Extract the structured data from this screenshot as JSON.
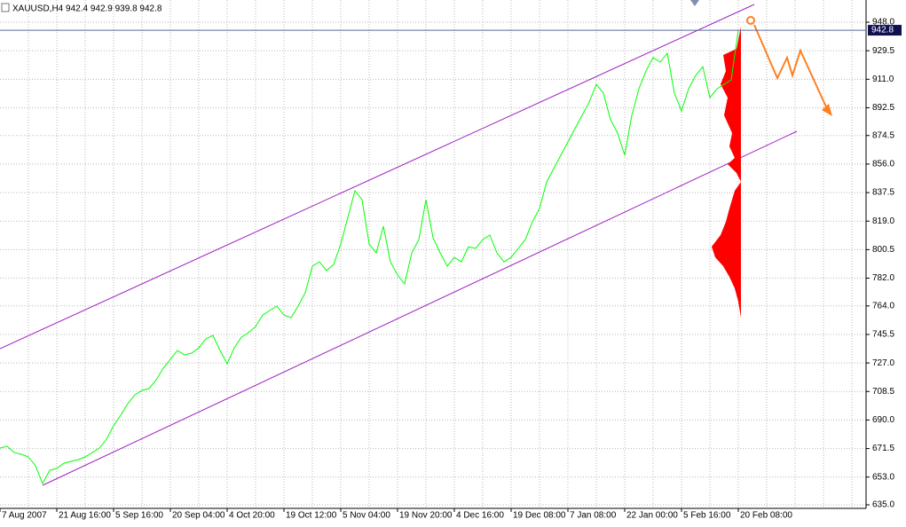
{
  "chart_data": {
    "type": "line",
    "title": "XAUUSD,H4 942.4 942.9 939.8 942.8",
    "categories": [
      "7 Aug 2007",
      null,
      null,
      null,
      null,
      null,
      null,
      null,
      "21 Aug 16:00",
      null,
      null,
      null,
      null,
      null,
      null,
      null,
      "5 Sep 16:00",
      null,
      null,
      null,
      null,
      null,
      null,
      null,
      "20 Sep 04:00",
      null,
      null,
      null,
      null,
      null,
      null,
      null,
      "4 Oct 20:00",
      null,
      null,
      null,
      null,
      null,
      null,
      null,
      "19 Oct 12:00",
      null,
      null,
      null,
      null,
      null,
      null,
      null,
      "5 Nov 04:00",
      null,
      null,
      null,
      null,
      null,
      null,
      null,
      "19 Nov 20:00",
      null,
      null,
      null,
      null,
      null,
      null,
      null,
      "4 Dec 16:00",
      null,
      null,
      null,
      null,
      null,
      null,
      null,
      "19 Dec 08:00",
      null,
      null,
      null,
      null,
      null,
      null,
      null,
      "7 Jan 08:00",
      null,
      null,
      null,
      null,
      null,
      null,
      null,
      "22 Jan 00:00",
      null,
      null,
      null,
      null,
      null,
      null,
      null,
      "5 Feb 16:00",
      null,
      null,
      null,
      null,
      null,
      null,
      null,
      "20 Feb 08:00"
    ],
    "values": [
      671.8,
      673.0,
      668.9,
      667.8,
      666.1,
      660.3,
      648.8,
      657.4,
      658.6,
      662.0,
      663.2,
      664.3,
      666.1,
      668.9,
      671.8,
      677.6,
      686.2,
      693.1,
      700.6,
      706.3,
      709.2,
      710.4,
      716.1,
      723.6,
      729.3,
      735.1,
      732.2,
      733.4,
      736.8,
      742.6,
      744.9,
      735.1,
      726.5,
      736.8,
      743.7,
      746.6,
      750.6,
      758.1,
      761.0,
      763.9,
      758.1,
      756.4,
      763.9,
      772.5,
      789.8,
      792.6,
      786.9,
      790.9,
      804.1,
      821.4,
      838.7,
      832.9,
      804.1,
      798.4,
      815.7,
      792.6,
      784.0,
      778.3,
      798.4,
      807.0,
      832.9,
      808.2,
      798.4,
      789.8,
      795.5,
      792.6,
      802.4,
      801.3,
      807.0,
      809.9,
      798.4,
      792.6,
      795.5,
      801.3,
      807.0,
      818.5,
      827.2,
      844.4,
      853.1,
      861.7,
      870.3,
      879.0,
      887.6,
      896.2,
      907.7,
      902.0,
      884.7,
      876.1,
      861.7,
      887.6,
      904.8,
      916.4,
      925.0,
      922.1,
      927.9,
      902.0,
      890.5,
      904.8,
      913.5,
      919.2,
      899.1,
      904.8,
      907.7,
      910.6,
      942.8
    ],
    "color": "#00ff00",
    "last_price": 942.8,
    "ylim": [
      632.7,
      962.4
    ],
    "yticks": [
      {
        "value": 948,
        "label": "948.0"
      },
      929.5,
      {
        "value": 911,
        "label": "911.0"
      },
      892.5,
      874.5,
      {
        "value": 856,
        "label": "856.0"
      },
      837.5,
      {
        "value": 819,
        "label": "819.0"
      },
      800.5,
      {
        "value": 782,
        "label": "782.0"
      },
      {
        "value": 764,
        "label": "764.0"
      },
      745.5,
      {
        "value": 727,
        "label": "727.0"
      },
      708.5,
      {
        "value": 690,
        "label": "690.0"
      },
      671.5,
      {
        "value": 653,
        "label": "653.0"
      },
      {
        "value": 635,
        "label": "635.0"
      }
    ],
    "grid": true
  }
}
